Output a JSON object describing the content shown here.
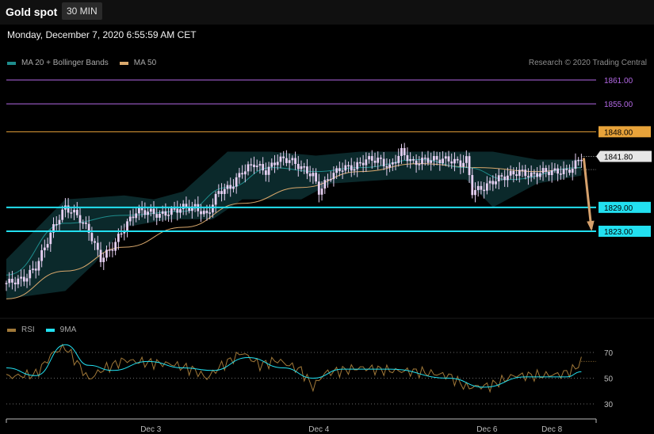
{
  "header": {
    "title": "Gold spot",
    "timeframe": "30 MIN",
    "datetime": "Monday, December 7, 2020 6:55:59 AM CET",
    "credit": "Research © 2020 Trading Central"
  },
  "colors": {
    "ma20": "#1e8c8c",
    "ma50": "#d9a86c",
    "resistance_purple": "#b469e6",
    "resistance_orange": "#e8a33a",
    "support_cyan": "#22e0f0",
    "forecast_arrow": "#d6a16c",
    "candle": "#e6d0f2",
    "rsi": "#a07838",
    "rsi_ma": "#22e0f0"
  },
  "legend": {
    "main": [
      {
        "label": "MA 20 + Bollinger Bands",
        "color": "#1e8c8c"
      },
      {
        "label": "MA 50",
        "color": "#d9a86c"
      }
    ],
    "rsi": [
      {
        "label": "RSI",
        "color": "#a07838"
      },
      {
        "label": "9MA",
        "color": "#22e0f0"
      }
    ]
  },
  "chart_data": [
    {
      "type": "candlestick",
      "name_printed": "",
      "x_ticks": [
        "Dec 3",
        "Dec 4",
        "Dec 6",
        "Dec 8"
      ],
      "last_price": "1841.80",
      "levels": [
        {
          "label": "1861.00",
          "value": 1861.0,
          "kind": "resistance",
          "color": "#b469e6"
        },
        {
          "label": "1855.00",
          "value": 1855.0,
          "kind": "resistance",
          "color": "#b469e6"
        },
        {
          "label": "1848.00",
          "value": 1848.0,
          "kind": "resistance",
          "color": "#e8a33a"
        },
        {
          "label": "1829.00",
          "value": 1829.0,
          "kind": "support",
          "color": "#22e0f0"
        },
        {
          "label": "1823.00",
          "value": 1823.0,
          "kind": "support",
          "color": "#22e0f0"
        }
      ],
      "forecast": {
        "from": 1841.8,
        "to": 1823.0,
        "direction": "down"
      },
      "price_path": [
        [
          0,
          1810
        ],
        [
          6,
          1811
        ],
        [
          10,
          1814
        ],
        [
          16,
          1824
        ],
        [
          20,
          1829
        ],
        [
          24,
          1827
        ],
        [
          28,
          1823
        ],
        [
          32,
          1816
        ],
        [
          36,
          1819
        ],
        [
          40,
          1824
        ],
        [
          44,
          1828
        ],
        [
          48,
          1828
        ],
        [
          52,
          1827
        ],
        [
          56,
          1828
        ],
        [
          60,
          1829
        ],
        [
          64,
          1829
        ],
        [
          68,
          1827
        ],
        [
          72,
          1833
        ],
        [
          76,
          1834
        ],
        [
          80,
          1838
        ],
        [
          84,
          1840
        ],
        [
          88,
          1838
        ],
        [
          92,
          1841
        ],
        [
          96,
          1841
        ],
        [
          100,
          1839
        ],
        [
          104,
          1837
        ],
        [
          106,
          1833
        ],
        [
          110,
          1837
        ],
        [
          114,
          1839
        ],
        [
          118,
          1839
        ],
        [
          122,
          1841
        ],
        [
          126,
          1841
        ],
        [
          130,
          1839
        ],
        [
          134,
          1843
        ],
        [
          138,
          1840
        ],
        [
          142,
          1841
        ],
        [
          146,
          1841
        ],
        [
          150,
          1841
        ],
        [
          154,
          1840
        ],
        [
          156,
          1841
        ],
        [
          158,
          1833
        ],
        [
          162,
          1834
        ],
        [
          166,
          1836
        ],
        [
          170,
          1837
        ],
        [
          174,
          1838
        ],
        [
          178,
          1837
        ],
        [
          182,
          1838
        ],
        [
          186,
          1838
        ],
        [
          190,
          1838
        ],
        [
          192,
          1839
        ],
        [
          195,
          1841.8
        ]
      ],
      "ma50_path": [
        [
          0,
          1806
        ],
        [
          20,
          1813
        ],
        [
          40,
          1819
        ],
        [
          60,
          1824
        ],
        [
          80,
          1830
        ],
        [
          100,
          1834
        ],
        [
          120,
          1838
        ],
        [
          140,
          1840
        ],
        [
          160,
          1839
        ],
        [
          180,
          1838
        ],
        [
          195,
          1839
        ]
      ],
      "ma20_path": [
        [
          0,
          1812
        ],
        [
          20,
          1825
        ],
        [
          40,
          1827
        ],
        [
          60,
          1828
        ],
        [
          75,
          1834
        ],
        [
          90,
          1839
        ],
        [
          105,
          1838
        ],
        [
          120,
          1839
        ],
        [
          140,
          1841
        ],
        [
          156,
          1839
        ],
        [
          170,
          1836
        ],
        [
          195,
          1839
        ]
      ],
      "band_upper": [
        [
          0,
          1816
        ],
        [
          20,
          1831
        ],
        [
          40,
          1832
        ],
        [
          50,
          1831
        ],
        [
          60,
          1833
        ],
        [
          75,
          1843
        ],
        [
          90,
          1843
        ],
        [
          105,
          1842
        ],
        [
          120,
          1843
        ],
        [
          140,
          1843
        ],
        [
          156,
          1843
        ],
        [
          165,
          1843
        ],
        [
          180,
          1841
        ],
        [
          195,
          1841
        ]
      ],
      "band_lower": [
        [
          0,
          1806
        ],
        [
          20,
          1808
        ],
        [
          30,
          1815
        ],
        [
          40,
          1824
        ],
        [
          55,
          1826
        ],
        [
          70,
          1826
        ],
        [
          80,
          1831
        ],
        [
          100,
          1831
        ],
        [
          110,
          1835
        ],
        [
          130,
          1836
        ],
        [
          156,
          1836
        ],
        [
          165,
          1829
        ],
        [
          180,
          1835
        ],
        [
          195,
          1837
        ]
      ]
    },
    {
      "type": "line",
      "name_printed": "RSI",
      "y_ticks": [
        70,
        50,
        30
      ],
      "rsi_path": [
        [
          0,
          51
        ],
        [
          10,
          53
        ],
        [
          16,
          70
        ],
        [
          20,
          74
        ],
        [
          24,
          62
        ],
        [
          28,
          49
        ],
        [
          32,
          56
        ],
        [
          40,
          64
        ],
        [
          48,
          62
        ],
        [
          56,
          61
        ],
        [
          64,
          56
        ],
        [
          68,
          50
        ],
        [
          72,
          58
        ],
        [
          80,
          70
        ],
        [
          86,
          60
        ],
        [
          92,
          64
        ],
        [
          100,
          56
        ],
        [
          104,
          43
        ],
        [
          108,
          54
        ],
        [
          120,
          58
        ],
        [
          130,
          56
        ],
        [
          140,
          55
        ],
        [
          150,
          52
        ],
        [
          156,
          43
        ],
        [
          164,
          44
        ],
        [
          172,
          52
        ],
        [
          180,
          52
        ],
        [
          188,
          53
        ],
        [
          192,
          56
        ],
        [
          195,
          63
        ]
      ],
      "ma9_path": [
        [
          0,
          58
        ],
        [
          10,
          52
        ],
        [
          20,
          76
        ],
        [
          28,
          60
        ],
        [
          36,
          56
        ],
        [
          48,
          63
        ],
        [
          60,
          58
        ],
        [
          70,
          56
        ],
        [
          82,
          66
        ],
        [
          94,
          58
        ],
        [
          104,
          50
        ],
        [
          114,
          57
        ],
        [
          130,
          57
        ],
        [
          150,
          50
        ],
        [
          162,
          43
        ],
        [
          176,
          51
        ],
        [
          190,
          51
        ],
        [
          195,
          55
        ]
      ]
    }
  ]
}
